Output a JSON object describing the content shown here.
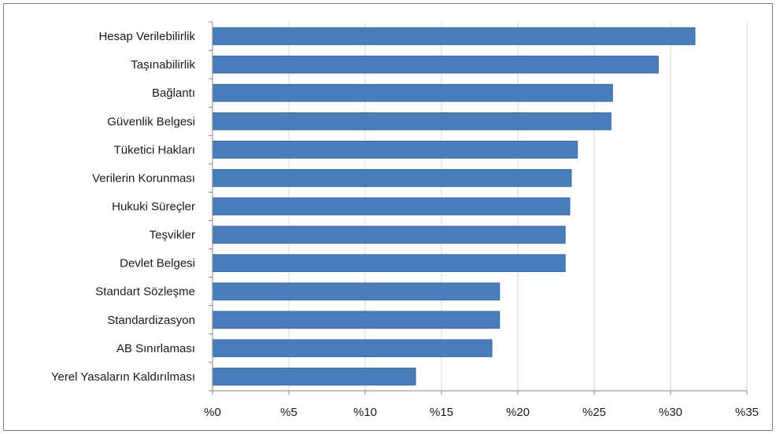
{
  "chart_data": {
    "type": "bar",
    "orientation": "horizontal",
    "categories": [
      "Hesap Verilebilirlik",
      "Taşınabilirlik",
      "Bağlantı",
      "Güvenlik Belgesi",
      "Tüketici Hakları",
      "Verilerin Korunması",
      "Hukuki Süreçler",
      "Teşvikler",
      "Devlet Belgesi",
      "Standart Sözleşme",
      "Standardizasyon",
      "AB Sınırlaması",
      "Yerel Yasaların Kaldırılması"
    ],
    "values": [
      31.6,
      29.2,
      26.2,
      26.1,
      23.9,
      23.5,
      23.4,
      23.1,
      23.1,
      18.8,
      18.8,
      18.3,
      13.3
    ],
    "xlim": [
      0,
      35
    ],
    "x_ticks": [
      0,
      5,
      10,
      15,
      20,
      25,
      30,
      35
    ],
    "x_tick_labels": [
      "%0",
      "%5",
      "%10",
      "%15",
      "%20",
      "%25",
      "%30",
      "%35"
    ],
    "title": "",
    "xlabel": "",
    "ylabel": "",
    "grid": "vertical",
    "legend": "none",
    "colors": {
      "bar_fill": "#4a7ebb",
      "bar_stroke": "#3a68a0",
      "grid": "#d9d9d9",
      "axis": "#868686"
    }
  }
}
